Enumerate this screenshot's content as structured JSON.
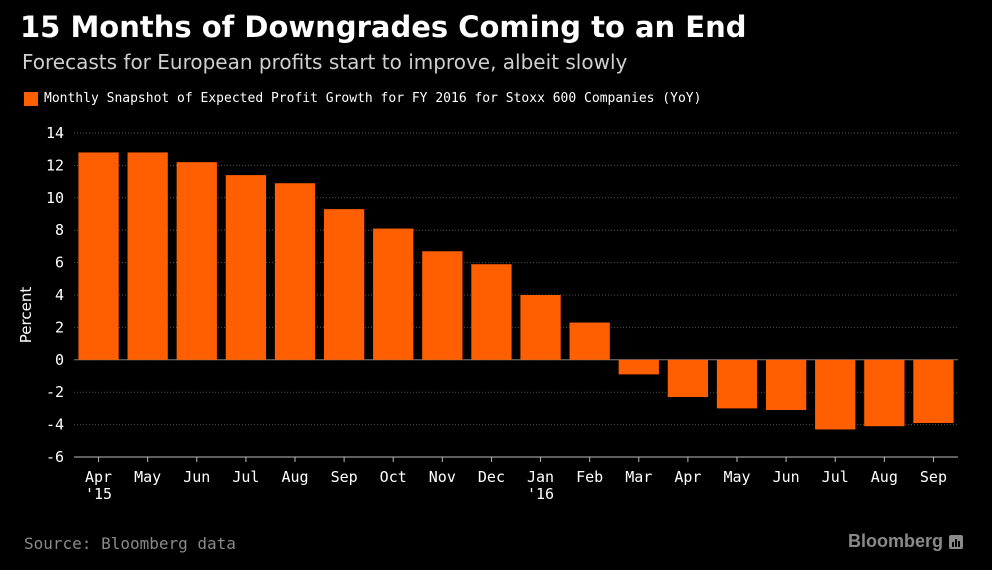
{
  "title": "15 Months of Downgrades Coming to an End",
  "subtitle": "Forecasts for European profits start to improve, albeit slowly",
  "source": "Source: Bloomberg data",
  "brand": "Bloomberg",
  "brand_icon": "bloomberg-terminal-icon",
  "colors": {
    "background": "#000000",
    "bar": "#ff5f00",
    "grid": "#555555",
    "text": "#ffffff",
    "muted": "#8a8a8a"
  },
  "chart_data": {
    "type": "bar",
    "categories": [
      "Apr\n'15",
      "May",
      "Jun",
      "Jul",
      "Aug",
      "Sep",
      "Oct",
      "Nov",
      "Dec",
      "Jan\n'16",
      "Feb",
      "Mar",
      "Apr",
      "May",
      "Jun",
      "Jul",
      "Aug",
      "Sep"
    ],
    "series": [
      {
        "name": "Monthly Snapshot of Expected Profit Growth for FY 2016 for Stoxx 600 Companies (YoY)",
        "values": [
          12.8,
          12.8,
          12.2,
          11.4,
          10.9,
          9.3,
          8.1,
          6.7,
          5.9,
          4.0,
          2.3,
          -0.9,
          -2.3,
          -3.0,
          -3.1,
          -4.3,
          -4.1,
          -3.9
        ]
      }
    ],
    "ylabel": "Percent",
    "xlabel": "",
    "ylim": [
      -6,
      14
    ],
    "yticks": [
      -6,
      -4,
      -2,
      0,
      2,
      4,
      6,
      8,
      10,
      12,
      14
    ],
    "grid": true,
    "legend_position": "top-left"
  }
}
